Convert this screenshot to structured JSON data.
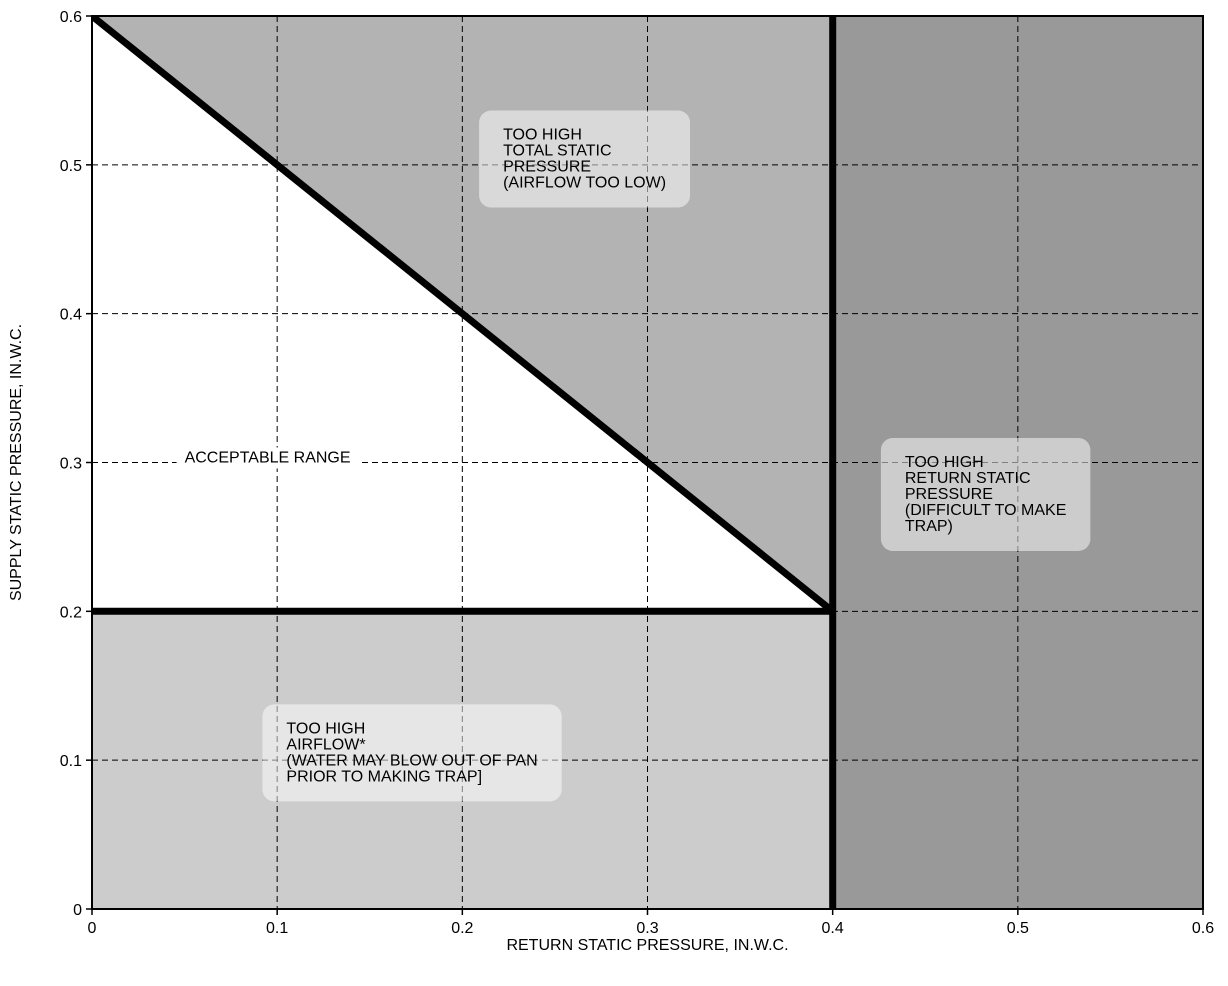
{
  "chart_data": {
    "type": "area",
    "xlabel": "RETURN STATIC PRESSURE, IN.W.C.",
    "ylabel": "SUPPLY STATIC PRESSURE, IN.W.C.",
    "xlim": [
      0,
      0.6
    ],
    "ylim": [
      0,
      0.6
    ],
    "x_ticks": [
      0,
      0.1,
      0.2,
      0.3,
      0.4,
      0.5,
      0.6
    ],
    "y_ticks": [
      0,
      0.1,
      0.2,
      0.3,
      0.4,
      0.5,
      0.6
    ],
    "x_tick_labels": [
      "0",
      "0.1",
      "0.2",
      "0.3",
      "0.4",
      "0.5",
      "0.6"
    ],
    "y_tick_labels": [
      "0",
      "0.1",
      "0.2",
      "0.3",
      "0.4",
      "0.5",
      "0.6"
    ],
    "grid": true,
    "boundaries": [
      {
        "id": "diagonal",
        "points": [
          [
            0,
            0.6
          ],
          [
            0.4,
            0.2
          ]
        ]
      },
      {
        "id": "horizontal",
        "points": [
          [
            0,
            0.2
          ],
          [
            0.4,
            0.2
          ]
        ]
      },
      {
        "id": "vertical",
        "points": [
          [
            0.4,
            0
          ],
          [
            0.4,
            0.6
          ]
        ]
      }
    ],
    "regions": [
      {
        "id": "too-high-total-static",
        "polygon": [
          [
            0,
            0.6
          ],
          [
            0.4,
            0.6
          ],
          [
            0.4,
            0.2
          ]
        ],
        "color": "#b3b3b3",
        "label_lines": [
          "TOO HIGH",
          "TOTAL STATIC",
          "PRESSURE",
          "(AIRFLOW TOO LOW)"
        ],
        "label_anchor": [
          0.222,
          0.517
        ]
      },
      {
        "id": "too-high-return-static",
        "polygon": [
          [
            0.4,
            0
          ],
          [
            0.6,
            0
          ],
          [
            0.6,
            0.6
          ],
          [
            0.4,
            0.6
          ]
        ],
        "color": "#999999",
        "label_lines": [
          "TOO HIGH",
          "RETURN STATIC",
          "PRESSURE",
          "(DIFFICULT TO MAKE",
          "TRAP)"
        ],
        "label_anchor": [
          0.439,
          0.297
        ]
      },
      {
        "id": "too-high-airflow",
        "polygon": [
          [
            0,
            0
          ],
          [
            0.4,
            0
          ],
          [
            0.4,
            0.2
          ],
          [
            0,
            0.2
          ]
        ],
        "color": "#cccccc",
        "label_lines": [
          "TOO HIGH",
          "AIRFLOW*",
          "(WATER MAY BLOW OUT OF PAN",
          "PRIOR TO MAKING TRAP]"
        ],
        "label_anchor": [
          0.105,
          0.118
        ]
      },
      {
        "id": "acceptable-range",
        "polygon": [
          [
            0,
            0.6
          ],
          [
            0.4,
            0.2
          ],
          [
            0,
            0.2
          ]
        ],
        "color": "#ffffff",
        "label_lines": [
          "ACCEPTABLE RANGE"
        ],
        "label_anchor": [
          0.05,
          0.3
        ]
      }
    ]
  }
}
